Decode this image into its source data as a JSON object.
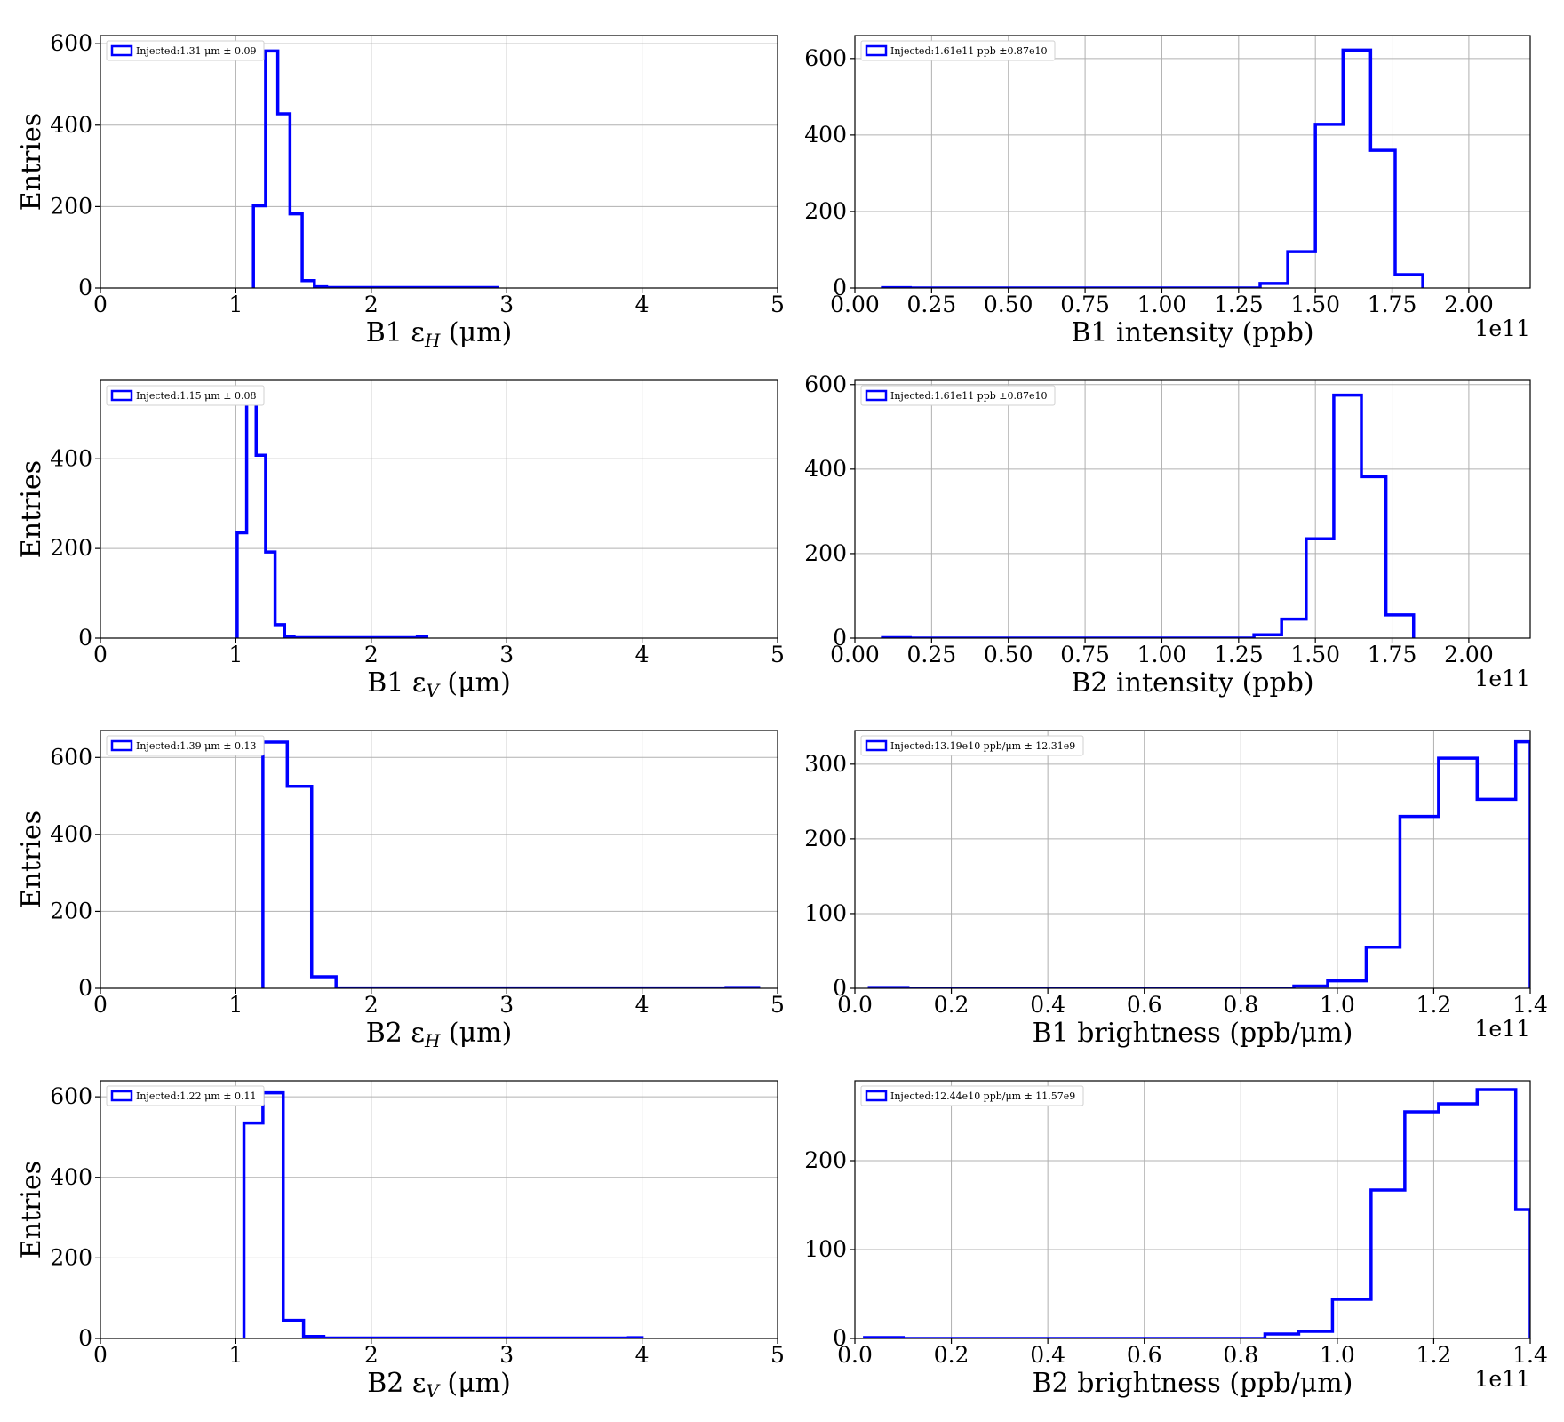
{
  "chart_data": [
    {
      "type": "histogram",
      "xlabel": "B1 ε",
      "xlabel_sub": "H",
      "xlabel_unit": "(μm)",
      "ylabel": "Entries",
      "legend": "Injected:1.31 μm ± 0.09",
      "legend_loc": "upper-left",
      "xlim": [
        0,
        5
      ],
      "ylim": [
        0,
        620
      ],
      "xticks": [
        0,
        1,
        2,
        3,
        4,
        5
      ],
      "xtick_labels": [
        "0",
        "1",
        "2",
        "3",
        "4",
        "5"
      ],
      "yticks": [
        0,
        200,
        400,
        600
      ],
      "ytick_labels": [
        "0",
        "200",
        "400",
        "600"
      ],
      "offset": "",
      "grid": true,
      "bin_edges": [
        1.13,
        1.22,
        1.31,
        1.4,
        1.49,
        1.58,
        1.67,
        1.76,
        1.85,
        1.94,
        2.03,
        2.12,
        2.21,
        2.3,
        2.39,
        2.48,
        2.57,
        2.66,
        2.75,
        2.84,
        2.93
      ],
      "counts": [
        202,
        582,
        428,
        182,
        18,
        3,
        1,
        1,
        1,
        1,
        1,
        1,
        1,
        1,
        1,
        1,
        1,
        1,
        1,
        1
      ]
    },
    {
      "type": "histogram",
      "xlabel": "B1 intensity (ppb)",
      "xlabel_sub": "",
      "xlabel_unit": "",
      "ylabel": "",
      "legend": "Injected:1.61e11 ppb ±0.87e10",
      "legend_loc": "upper-left",
      "xlim": [
        0,
        2.2
      ],
      "ylim": [
        0,
        660
      ],
      "xticks": [
        0,
        0.25,
        0.5,
        0.75,
        1,
        1.25,
        1.5,
        1.75,
        2
      ],
      "xtick_labels": [
        "0.00",
        "0.25",
        "0.50",
        "0.75",
        "1.00",
        "1.25",
        "1.50",
        "1.75",
        "2.00"
      ],
      "yticks": [
        0,
        200,
        400,
        600
      ],
      "ytick_labels": [
        "0",
        "200",
        "400",
        "600"
      ],
      "offset": "1e11",
      "grid": true,
      "bin_edges": [
        0.09,
        0.18,
        0.27,
        0.36,
        0.45,
        0.54,
        0.63,
        0.72,
        0.81,
        0.9,
        0.99,
        1.08,
        1.17,
        1.26,
        1.32,
        1.41,
        1.5,
        1.59,
        1.68,
        1.76,
        1.85
      ],
      "counts": [
        1,
        0,
        0,
        0,
        0,
        0,
        0,
        0,
        0,
        0,
        0,
        0,
        0,
        0,
        12,
        95,
        428,
        622,
        360,
        35
      ]
    },
    {
      "type": "histogram",
      "xlabel": "B1 ε",
      "xlabel_sub": "V",
      "xlabel_unit": "(μm)",
      "ylabel": "Entries",
      "legend": "Injected:1.15 μm ± 0.08",
      "legend_loc": "upper-left",
      "xlim": [
        0,
        5
      ],
      "ylim": [
        0,
        575
      ],
      "xticks": [
        0,
        1,
        2,
        3,
        4,
        5
      ],
      "xtick_labels": [
        "0",
        "1",
        "2",
        "3",
        "4",
        "5"
      ],
      "yticks": [
        0,
        200,
        400
      ],
      "ytick_labels": [
        "0",
        "200",
        "400"
      ],
      "offset": "",
      "grid": true,
      "bin_edges": [
        1.01,
        1.08,
        1.15,
        1.22,
        1.29,
        1.36,
        1.43,
        1.5,
        1.57,
        1.64,
        1.71,
        1.78,
        1.85,
        1.92,
        1.99,
        2.06,
        2.13,
        2.2,
        2.27,
        2.34,
        2.41
      ],
      "counts": [
        235,
        545,
        408,
        192,
        30,
        3,
        1,
        1,
        1,
        1,
        1,
        1,
        1,
        1,
        1,
        1,
        1,
        1,
        1,
        3
      ]
    },
    {
      "type": "histogram",
      "xlabel": "B2 intensity (ppb)",
      "xlabel_sub": "",
      "xlabel_unit": "",
      "ylabel": "",
      "legend": "Injected:1.61e11 ppb ±0.87e10",
      "legend_loc": "upper-left",
      "xlim": [
        0,
        2.2
      ],
      "ylim": [
        0,
        610
      ],
      "xticks": [
        0,
        0.25,
        0.5,
        0.75,
        1,
        1.25,
        1.5,
        1.75,
        2
      ],
      "xtick_labels": [
        "0.00",
        "0.25",
        "0.50",
        "0.75",
        "1.00",
        "1.25",
        "1.50",
        "1.75",
        "2.00"
      ],
      "yticks": [
        0,
        200,
        400,
        600
      ],
      "ytick_labels": [
        "0",
        "200",
        "400",
        "600"
      ],
      "offset": "1e11",
      "grid": true,
      "bin_edges": [
        0.09,
        0.18,
        0.27,
        0.36,
        0.45,
        0.54,
        0.63,
        0.72,
        0.81,
        0.9,
        0.99,
        1.08,
        1.17,
        1.25,
        1.3,
        1.39,
        1.47,
        1.56,
        1.65,
        1.73,
        1.82
      ],
      "counts": [
        1,
        0,
        0,
        0,
        0,
        0,
        0,
        0,
        0,
        0,
        0,
        0,
        0,
        0,
        8,
        45,
        235,
        575,
        382,
        55
      ]
    },
    {
      "type": "histogram",
      "xlabel": "B2 ε",
      "xlabel_sub": "H",
      "xlabel_unit": "(μm)",
      "ylabel": "Entries",
      "legend": "Injected:1.39 μm ± 0.13",
      "legend_loc": "upper-left",
      "xlim": [
        0,
        5
      ],
      "ylim": [
        0,
        670
      ],
      "xticks": [
        0,
        1,
        2,
        3,
        4,
        5
      ],
      "xtick_labels": [
        "0",
        "1",
        "2",
        "3",
        "4",
        "5"
      ],
      "yticks": [
        0,
        200,
        400,
        600
      ],
      "ytick_labels": [
        "0",
        "200",
        "400",
        "600"
      ],
      "offset": "",
      "grid": true,
      "bin_edges": [
        1.2,
        1.38,
        1.56,
        1.74,
        1.92,
        2.1,
        2.28,
        2.46,
        2.64,
        2.82,
        3.0,
        3.18,
        3.36,
        3.54,
        3.72,
        3.9,
        4.08,
        4.26,
        4.44,
        4.62,
        4.86
      ],
      "counts": [
        640,
        525,
        30,
        1,
        1,
        1,
        1,
        1,
        1,
        1,
        1,
        1,
        1,
        1,
        1,
        1,
        1,
        1,
        1,
        2
      ]
    },
    {
      "type": "histogram",
      "xlabel": "B1 brightness (ppb/μm)",
      "xlabel_sub": "",
      "xlabel_unit": "",
      "ylabel": "",
      "legend": "Injected:13.19e10 ppb/μm ± 12.31e9",
      "legend_loc": "upper-left",
      "xlim": [
        0,
        1.4
      ],
      "ylim": [
        0,
        345
      ],
      "xticks": [
        0,
        0.2,
        0.4,
        0.6,
        0.8,
        1,
        1.2,
        1.4
      ],
      "xtick_labels": [
        "0.0",
        "0.2",
        "0.4",
        "0.6",
        "0.8",
        "1.0",
        "1.2",
        "1.4"
      ],
      "yticks": [
        0,
        100,
        200,
        300
      ],
      "ytick_labels": [
        "0",
        "100",
        "200",
        "300"
      ],
      "offset": "1e11",
      "grid": true,
      "bin_edges": [
        0.03,
        0.11,
        0.19,
        0.27,
        0.35,
        0.43,
        0.51,
        0.59,
        0.67,
        0.75,
        0.83,
        0.91,
        0.98,
        1.06,
        1.13,
        1.21,
        1.29,
        1.37,
        1.4
      ],
      "counts": [
        1,
        0,
        0,
        0,
        0,
        0,
        0,
        0,
        0,
        0,
        0,
        3,
        10,
        55,
        230,
        308,
        253,
        330
      ]
    },
    {
      "type": "histogram",
      "xlabel": "B2 ε",
      "xlabel_sub": "V",
      "xlabel_unit": "(μm)",
      "ylabel": "Entries",
      "legend": "Injected:1.22 μm ± 0.11",
      "legend_loc": "upper-left",
      "xlim": [
        0,
        5
      ],
      "ylim": [
        0,
        640
      ],
      "xticks": [
        0,
        1,
        2,
        3,
        4,
        5
      ],
      "xtick_labels": [
        "0",
        "1",
        "2",
        "3",
        "4",
        "5"
      ],
      "yticks": [
        0,
        200,
        400,
        600
      ],
      "ytick_labels": [
        "0",
        "200",
        "400",
        "600"
      ],
      "offset": "",
      "grid": true,
      "bin_edges": [
        1.06,
        1.2,
        1.35,
        1.5,
        1.65,
        1.8,
        1.95,
        2.1,
        2.25,
        2.4,
        2.55,
        2.7,
        2.85,
        3.0,
        3.15,
        3.3,
        3.45,
        3.6,
        3.75,
        3.9,
        4.0
      ],
      "counts": [
        535,
        610,
        45,
        5,
        1,
        1,
        1,
        1,
        1,
        1,
        1,
        1,
        1,
        1,
        1,
        1,
        1,
        1,
        1,
        2
      ]
    },
    {
      "type": "histogram",
      "xlabel": "B2 brightness (ppb/μm)",
      "xlabel_sub": "",
      "xlabel_unit": "",
      "ylabel": "",
      "legend": "Injected:12.44e10 ppb/μm ± 11.57e9",
      "legend_loc": "upper-left",
      "xlim": [
        0,
        1.4
      ],
      "ylim": [
        0,
        290
      ],
      "xticks": [
        0,
        0.2,
        0.4,
        0.6,
        0.8,
        1,
        1.2,
        1.4
      ],
      "xtick_labels": [
        "0.0",
        "0.2",
        "0.4",
        "0.6",
        "0.8",
        "1.0",
        "1.2",
        "1.4"
      ],
      "yticks": [
        0,
        100,
        200
      ],
      "ytick_labels": [
        "0",
        "100",
        "200"
      ],
      "offset": "1e11",
      "grid": true,
      "bin_edges": [
        0.02,
        0.1,
        0.17,
        0.25,
        0.33,
        0.41,
        0.48,
        0.56,
        0.63,
        0.71,
        0.78,
        0.85,
        0.92,
        0.99,
        1.07,
        1.14,
        1.21,
        1.29,
        1.37,
        1.4
      ],
      "counts": [
        1,
        0,
        0,
        0,
        0,
        0,
        0,
        0,
        0,
        0,
        0,
        5,
        8,
        44,
        167,
        255,
        264,
        280,
        145
      ]
    }
  ]
}
